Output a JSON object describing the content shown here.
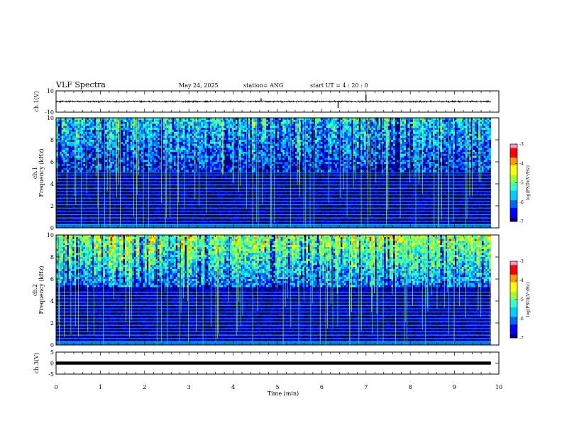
{
  "header": {
    "title": "VLF Spectra",
    "date": "May 24, 2025",
    "station": "station= ANG",
    "start": "start  UT =   4 : 20 : 0"
  },
  "chart_data": {
    "type": "heatmap",
    "x_axis": {
      "label": "Time  (min)",
      "range": [
        0,
        10
      ],
      "ticks": [
        "0",
        "1",
        "2",
        "3",
        "4",
        "5",
        "6",
        "7",
        "8",
        "9",
        "10"
      ],
      "data_end_min": 9.82
    },
    "panels": [
      {
        "name": "ch.1",
        "kind": "waveform",
        "ylabel": "ch.1(V)",
        "ylim": [
          -10,
          10
        ],
        "yticks": [
          "10",
          "-10"
        ],
        "baseline": 0,
        "noise_amplitude": 0.7,
        "spikes": [
          {
            "t": 4.63,
            "v": 3.0
          },
          {
            "t": 6.37,
            "v": -6.0
          },
          {
            "t": 7.0,
            "v": 6.5
          },
          {
            "t": 5.1,
            "v": -1.5
          }
        ]
      },
      {
        "name": "ch.1",
        "kind": "spectrogram",
        "ylabel": "ch.1\nFrequency (kHz)",
        "ylim": [
          0,
          10
        ],
        "yticks": [
          "0",
          "2",
          "4",
          "6",
          "8",
          "10"
        ],
        "colorbar": {
          "label": "log(PSD)(V²/Hz)",
          "range": [
            -7,
            -3
          ],
          "ticks": [
            "-3",
            "-4",
            "-5",
            "-6",
            "-7"
          ]
        },
        "intensity_upper": 0.4,
        "intensity_lower": 0.08,
        "transition_khz": 5.0,
        "harmonic_lines_khz": [
          0.3,
          0.6,
          0.9,
          1.2,
          1.5,
          1.8,
          2.1,
          2.4,
          2.7,
          3.0,
          3.3,
          3.6,
          3.9,
          4.2,
          4.5,
          4.8,
          5.0
        ]
      },
      {
        "name": "ch.2",
        "kind": "spectrogram",
        "ylabel": "ch.2\nFrequency (kHz)",
        "ylim": [
          0,
          10
        ],
        "yticks": [
          "0",
          "2",
          "4",
          "6",
          "8",
          "10"
        ],
        "colorbar": {
          "label": "log(PSD)(V²/Hz)",
          "range": [
            -7,
            -3
          ],
          "ticks": [
            "-3",
            "-4",
            "-5",
            "-6",
            "-7"
          ]
        },
        "intensity_upper": 0.6,
        "intensity_lower": 0.1,
        "transition_khz": 5.2,
        "harmonic_lines_khz": [
          0.3,
          0.6,
          0.9,
          1.2,
          1.5,
          1.8,
          2.1,
          2.4,
          2.7,
          3.0,
          3.3,
          3.6,
          3.9,
          4.2,
          4.5,
          4.8
        ]
      },
      {
        "name": "ch.3",
        "kind": "waveform",
        "ylabel": "ch.3(V)",
        "ylim": [
          -5,
          5
        ],
        "yticks": [
          "5",
          "0",
          "-5"
        ],
        "baseline": 0,
        "noise_amplitude": 0.25,
        "spikes": []
      }
    ],
    "colormap": [
      "#00007f",
      "#0000ff",
      "#0066ff",
      "#00ccff",
      "#33ffcc",
      "#99ff33",
      "#ffff00",
      "#ff9900",
      "#ff0000",
      "#ff99cc"
    ]
  }
}
